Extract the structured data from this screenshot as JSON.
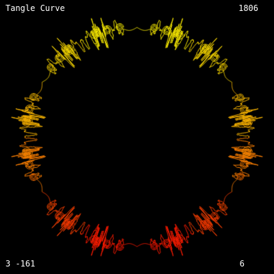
{
  "screen": {
    "background": "#000000",
    "text_color": "#ffffff"
  },
  "hud": {
    "title": "Tangle Curve",
    "counter": "1806",
    "params": "3 -161",
    "symmetry": "6"
  },
  "curve": {
    "symmetry_order": 6,
    "mirrored": true,
    "gradient": [
      "#ffff00",
      "#ffa500",
      "#ff0000"
    ]
  }
}
